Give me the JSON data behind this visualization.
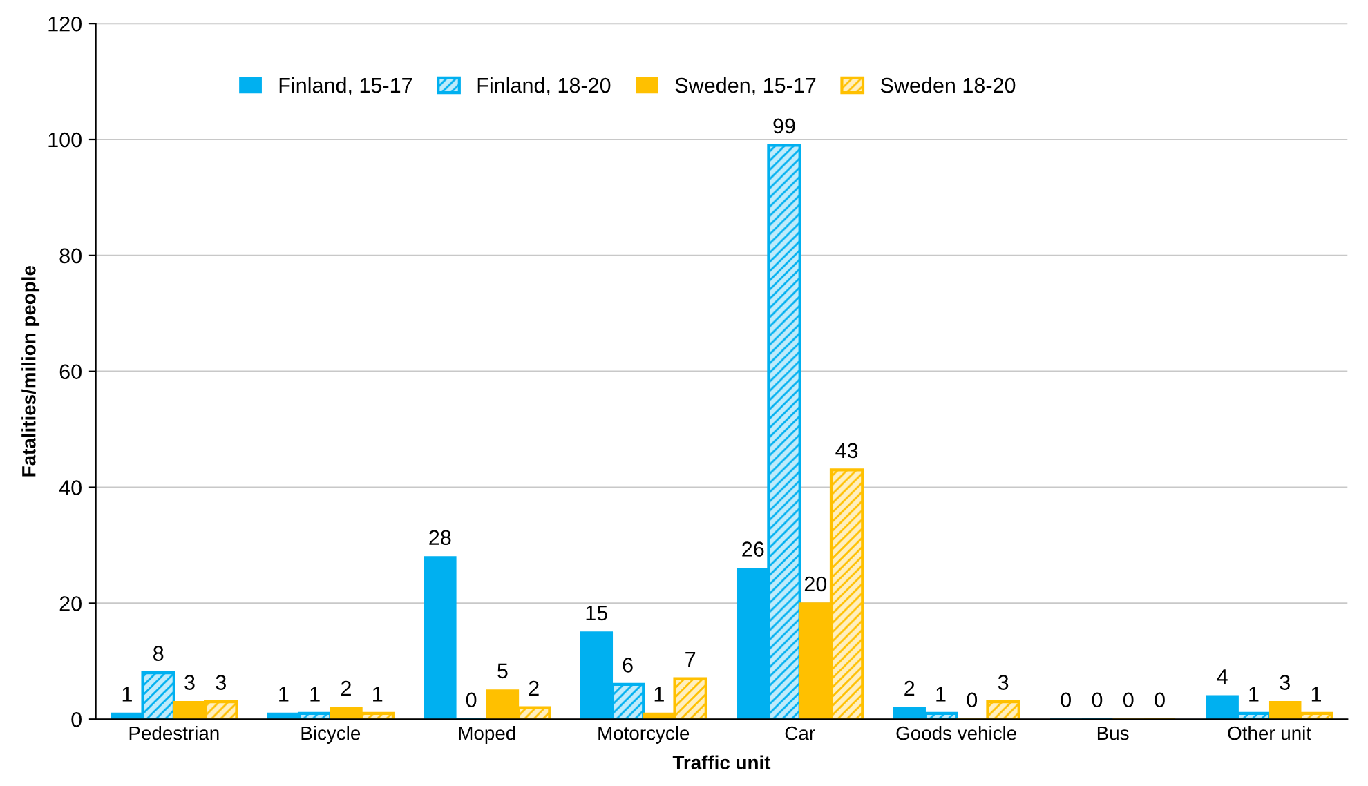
{
  "chart_data": {
    "type": "bar",
    "xlabel": "Traffic unit",
    "ylabel": "Fatalities/milion people",
    "categories": [
      "Pedestrian",
      "Bicycle",
      "Moped",
      "Motorcycle",
      "Car",
      "Goods vehicle",
      "Bus",
      "Other unit"
    ],
    "series": [
      {
        "name": "Finland, 15-17",
        "color": "#00b0f0",
        "values": [
          1,
          1,
          28,
          15,
          26,
          2,
          0,
          4
        ]
      },
      {
        "name": "Finland, 18-20",
        "color": "#00b0f0",
        "values": [
          8,
          1,
          0,
          6,
          99,
          1,
          0,
          1
        ]
      },
      {
        "name": "Sweden, 15-17",
        "color": "#ffc000",
        "values": [
          3,
          2,
          5,
          1,
          20,
          0,
          0,
          3
        ]
      },
      {
        "name": "Sweden 18-20",
        "color": "#ffc000",
        "values": [
          3,
          1,
          2,
          7,
          43,
          3,
          0,
          1
        ]
      }
    ],
    "ylim": [
      0,
      120
    ],
    "yticks": [
      0,
      20,
      40,
      60,
      80,
      100,
      120
    ],
    "grid": "y",
    "legend": "top left",
    "data_labels": true
  }
}
